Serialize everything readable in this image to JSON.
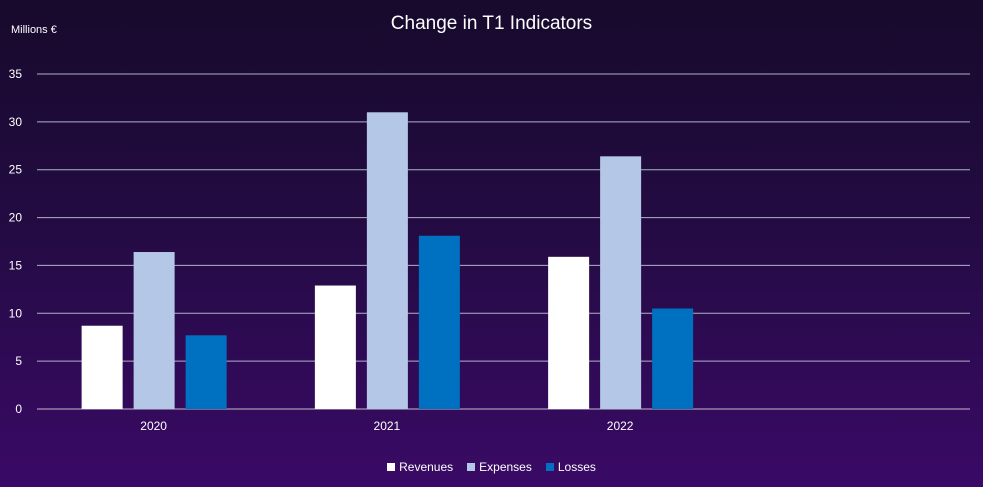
{
  "chart_data": {
    "type": "bar",
    "title": "Change in T1 Indicators",
    "ylabel": "Millions €",
    "xlabel": "",
    "categories": [
      "2020",
      "2021",
      "2022"
    ],
    "series": [
      {
        "name": "Revenues",
        "color": "#ffffff",
        "values": [
          8.7,
          12.9,
          15.9
        ]
      },
      {
        "name": "Expenses",
        "color": "#b4c7e7",
        "values": [
          16.4,
          31.0,
          26.4
        ]
      },
      {
        "name": "Losses",
        "color": "#0070c0",
        "values": [
          7.7,
          18.1,
          10.5
        ]
      }
    ],
    "ylim": [
      0,
      35
    ],
    "yticks": [
      "0",
      "5",
      "10",
      "15",
      "20",
      "25",
      "30",
      "35"
    ],
    "grid": true,
    "legend": "bottom"
  }
}
